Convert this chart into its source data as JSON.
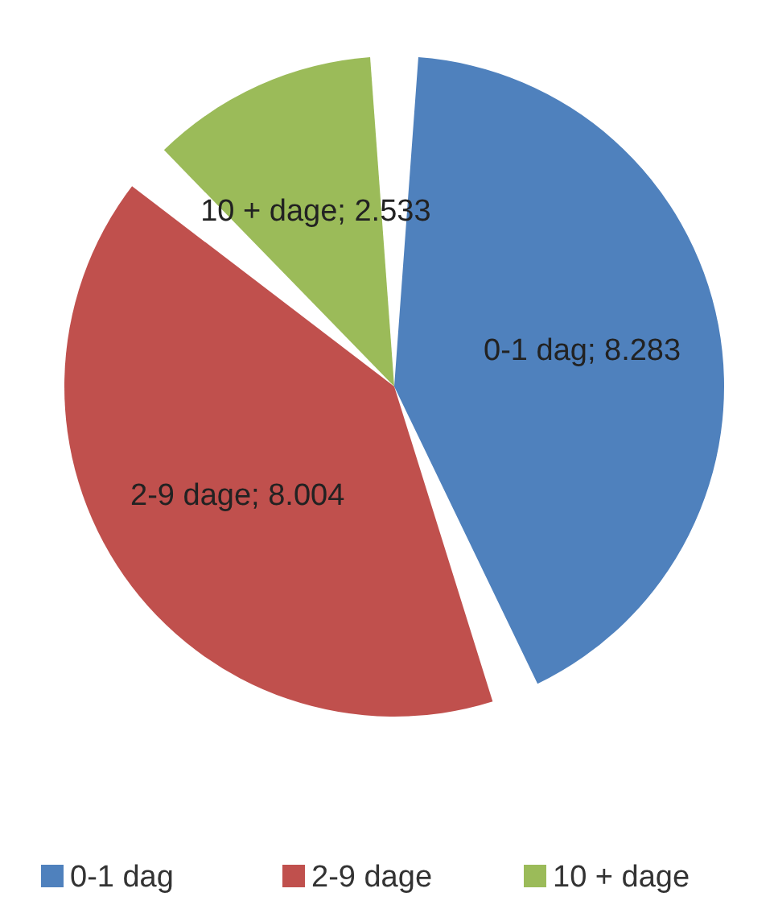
{
  "chart_data": {
    "type": "pie",
    "categories": [
      "0-1 dag",
      "2-9 dage",
      "10 + dage"
    ],
    "values": [
      8283,
      8004,
      2533
    ],
    "colors": [
      "#4f81bd",
      "#c0504d",
      "#9bbb59"
    ],
    "value_labels": [
      "0-1 dag; 8.283",
      "2-9 dage; 8.004",
      "10 + dage; 2.533"
    ],
    "legend": "bottom"
  }
}
